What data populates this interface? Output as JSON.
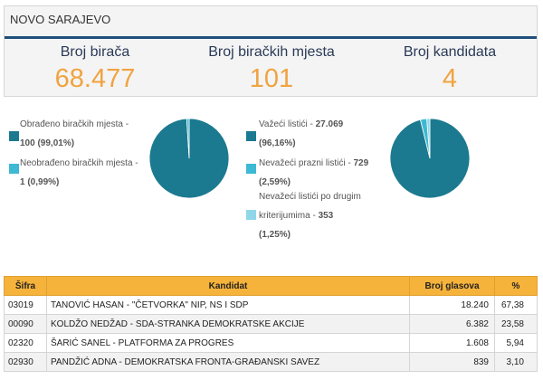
{
  "header": {
    "title": "NOVO SARAJEVO"
  },
  "stats": [
    {
      "label": "Broj birača",
      "value": "68.477"
    },
    {
      "label": "Broj biračkih mjesta",
      "value": "101"
    },
    {
      "label": "Broj kandidata",
      "value": "4"
    }
  ],
  "colors": {
    "accent": "#f0a340",
    "teal": "#1b7a8f",
    "light_teal": "#3db9d3",
    "pale_teal": "#8fd6e8",
    "header_rule": "#1f4f7a",
    "table_head": "#f6b33b"
  },
  "polling_chart": {
    "legend": [
      {
        "label": "Obrađeno biračkih mjesta -",
        "value": "100 (99,01%)",
        "color": "#1b7a8f"
      },
      {
        "label": "Neobrađeno biračkih mjesta -",
        "value": "1 (0,99%)",
        "color": "#3db9d3"
      }
    ],
    "chart_data": {
      "type": "pie",
      "values": [
        99.01,
        0.99
      ]
    }
  },
  "ballots_chart": {
    "legend": [
      {
        "label": "Važeći listići -",
        "value": "27.069",
        "pct": "(96,16%)",
        "color": "#1b7a8f"
      },
      {
        "label": "Nevažeći prazni listići -",
        "value": "729",
        "pct": "(2,59%)",
        "color": "#3db9d3"
      },
      {
        "label_1": "Nevažeći listići po drugim",
        "label_2": "kriterijumima -",
        "value": "353",
        "pct": "(1,25%)",
        "color": "#8fd6e8"
      }
    ],
    "chart_data": {
      "type": "pie",
      "values": [
        96.16,
        2.59,
        1.25
      ]
    }
  },
  "table": {
    "headers": [
      "Šifra",
      "Kandidat",
      "Broj glasova",
      "%"
    ],
    "rows": [
      {
        "code": "03019",
        "candidate": "TANOVIĆ HASAN - \"ČETVORKA\" NIP, NS I SDP",
        "votes": "18.240",
        "pct": "67,38"
      },
      {
        "code": "00090",
        "candidate": "KOLDŽO NEDŽAD - SDA-STRANKA DEMOKRATSKE AKCIJE",
        "votes": "6.382",
        "pct": "23,58"
      },
      {
        "code": "02320",
        "candidate": "ŠARIĆ SANEL - PLATFORMA ZA PROGRES",
        "votes": "1.608",
        "pct": "5,94"
      },
      {
        "code": "02930",
        "candidate": "PANDŽIĆ ADNA - DEMOKRATSKA FRONTA-GRAĐANSKI SAVEZ",
        "votes": "839",
        "pct": "3,10"
      }
    ]
  }
}
